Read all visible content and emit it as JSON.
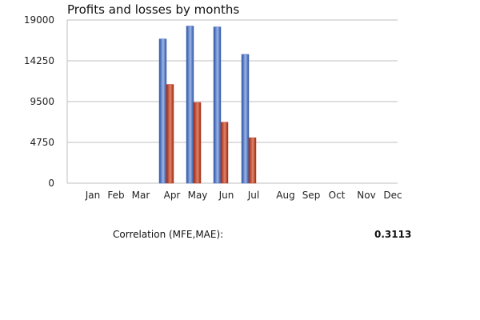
{
  "chart_data": {
    "type": "bar",
    "title": "Profits and losses by months",
    "categories": [
      "Jan",
      "Feb",
      "Mar",
      "Apr",
      "May",
      "Jun",
      "Jul",
      "Aug",
      "Sep",
      "Oct",
      "Nov",
      "Dec"
    ],
    "series": [
      {
        "values": [
          0,
          0,
          0,
          16800,
          18300,
          18200,
          15000,
          0,
          0,
          0,
          0,
          0
        ],
        "color": "#6f92d6"
      },
      {
        "values": [
          0,
          0,
          0,
          11500,
          9400,
          7100,
          5300,
          0,
          0,
          0,
          0,
          0
        ],
        "color": "#c8503a"
      }
    ],
    "ylim": [
      0,
      19000
    ],
    "yticks": [
      "0",
      "4750",
      "9500",
      "14250",
      "19000"
    ],
    "grid": true,
    "legend": "none"
  },
  "stats": {
    "label": "Correlation (MFE,MAE):",
    "value": "0.3113"
  }
}
